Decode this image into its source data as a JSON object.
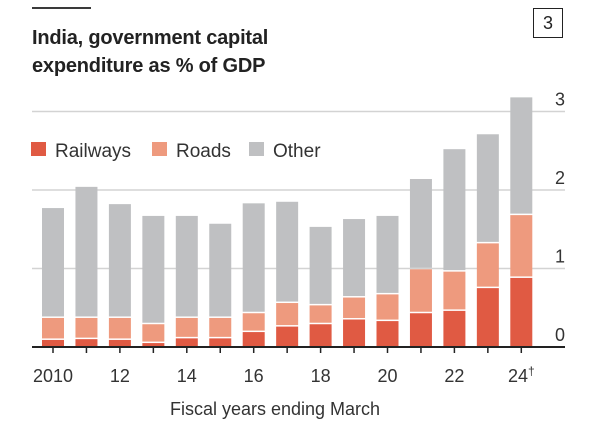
{
  "header": {
    "title_line1": "India, government capital",
    "title_line2": "expenditure as % of GDP",
    "chart_number": "3"
  },
  "colors": {
    "railways": "#E05A43",
    "roads": "#EE9A7E",
    "other": "#BFC0C2",
    "grid": "#D3D3D3",
    "baseline": "#222222"
  },
  "chart_data": {
    "type": "bar",
    "stacked": true,
    "title": "India, government capital expenditure as % of GDP",
    "xlabel": "Fiscal years ending March",
    "ylabel": "",
    "ylim": [
      0,
      3.2
    ],
    "yticks": [
      0,
      1,
      2,
      3
    ],
    "ytick_labels": [
      "0",
      "1",
      "2",
      "3"
    ],
    "grid": true,
    "legend_position": "top-left",
    "categories": [
      "2010",
      "2011",
      "2012",
      "2013",
      "2014",
      "2015",
      "2016",
      "2017",
      "2018",
      "2019",
      "2020",
      "2021",
      "2022",
      "2023",
      "2024"
    ],
    "xtick_labels": [
      {
        "category": "2010",
        "label": "2010"
      },
      {
        "category": "2012",
        "label": "12"
      },
      {
        "category": "2014",
        "label": "14"
      },
      {
        "category": "2016",
        "label": "16"
      },
      {
        "category": "2018",
        "label": "18"
      },
      {
        "category": "2020",
        "label": "20"
      },
      {
        "category": "2022",
        "label": "22"
      },
      {
        "category": "2024",
        "label": "24",
        "footnote": "†"
      }
    ],
    "series": [
      {
        "name": "Railways",
        "key": "railways",
        "values": [
          0.09,
          0.1,
          0.09,
          0.05,
          0.11,
          0.11,
          0.19,
          0.26,
          0.29,
          0.35,
          0.33,
          0.43,
          0.46,
          0.75,
          0.88
        ]
      },
      {
        "name": "Roads",
        "key": "roads",
        "values": [
          0.28,
          0.27,
          0.28,
          0.24,
          0.26,
          0.26,
          0.24,
          0.3,
          0.24,
          0.28,
          0.34,
          0.56,
          0.5,
          0.57,
          0.8
        ]
      },
      {
        "name": "Other",
        "key": "other",
        "values": [
          1.4,
          1.67,
          1.45,
          1.38,
          1.3,
          1.2,
          1.4,
          1.29,
          1.0,
          1.0,
          1.0,
          1.15,
          1.56,
          1.39,
          1.5
        ]
      }
    ]
  }
}
